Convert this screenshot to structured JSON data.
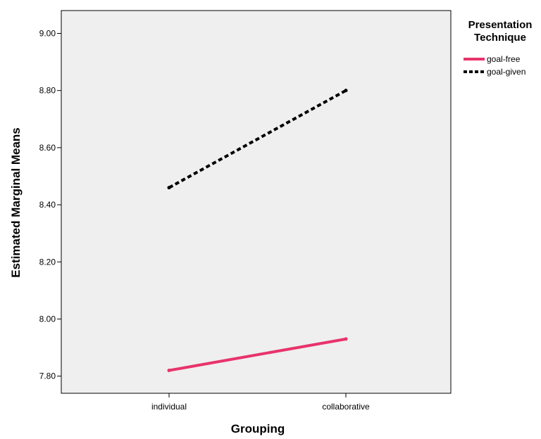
{
  "chart_data": {
    "type": "line",
    "xlabel": "Grouping",
    "ylabel": "Estimated Marginal Means",
    "categories": [
      "individual",
      "collaborative"
    ],
    "ylim": [
      7.74,
      9.08
    ],
    "yticks": [
      "7.80",
      "8.00",
      "8.20",
      "8.40",
      "8.60",
      "8.80",
      "9.00"
    ],
    "grid": false,
    "legend": {
      "title_line1": "Presentation",
      "title_line2": "Technique",
      "placement": "right"
    },
    "series": [
      {
        "name": "goal-free",
        "values": [
          7.82,
          7.93
        ],
        "color": "#e8336b",
        "style": "solid"
      },
      {
        "name": "goal-given",
        "values": [
          8.46,
          8.8
        ],
        "color": "#000000",
        "style": "dashed"
      }
    ],
    "plot_background": "#efefef"
  }
}
